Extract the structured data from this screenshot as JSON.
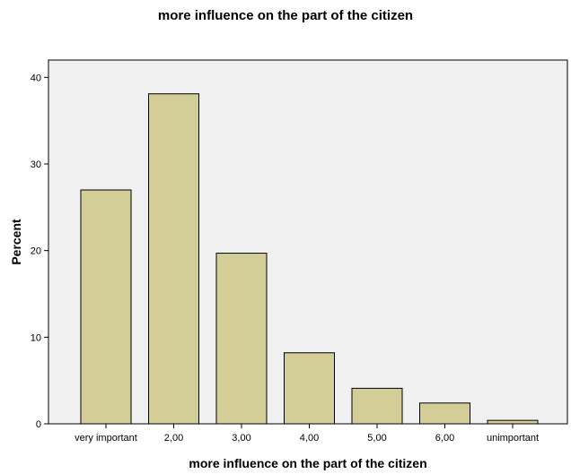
{
  "chart_data": {
    "type": "bar",
    "title": "more influence on the part of the citizen",
    "xlabel": "more influence on the part of the citizen",
    "ylabel": "Percent",
    "categories": [
      "very important",
      "2,00",
      "3,00",
      "4,00",
      "5,00",
      "6,00",
      "unimportant"
    ],
    "values": [
      27.0,
      38.1,
      19.7,
      8.2,
      4.1,
      2.4,
      0.4
    ],
    "ylim": [
      0,
      42
    ],
    "yticks": [
      0,
      10,
      20,
      30,
      40
    ],
    "grid": false,
    "legend": "none",
    "colors": {
      "plot_background": "#f0f0f0",
      "bar_fill": "#d3ce97",
      "bar_stroke": "#000000"
    }
  }
}
